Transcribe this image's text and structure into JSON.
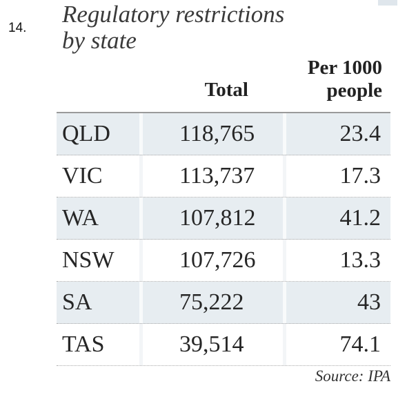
{
  "question_number": "14.",
  "chart_data": {
    "type": "table",
    "title": "Regulatory restrictions\nby state",
    "columns": [
      "",
      "Total",
      "Per 1000\npeople"
    ],
    "rows": [
      {
        "state": "QLD",
        "total": "118,765",
        "per_1000": "23.4"
      },
      {
        "state": "VIC",
        "total": "113,737",
        "per_1000": "17.3"
      },
      {
        "state": "WA",
        "total": "107,812",
        "per_1000": "41.2"
      },
      {
        "state": "NSW",
        "total": "107,726",
        "per_1000": "13.3"
      },
      {
        "state": "SA",
        "total": "75,222",
        "per_1000": "43"
      },
      {
        "state": "TAS",
        "total": "39,514",
        "per_1000": "74.1"
      }
    ],
    "source": "Source: IPA"
  },
  "colors": {
    "row_shade": "#e7edf1",
    "text": "#222222"
  }
}
